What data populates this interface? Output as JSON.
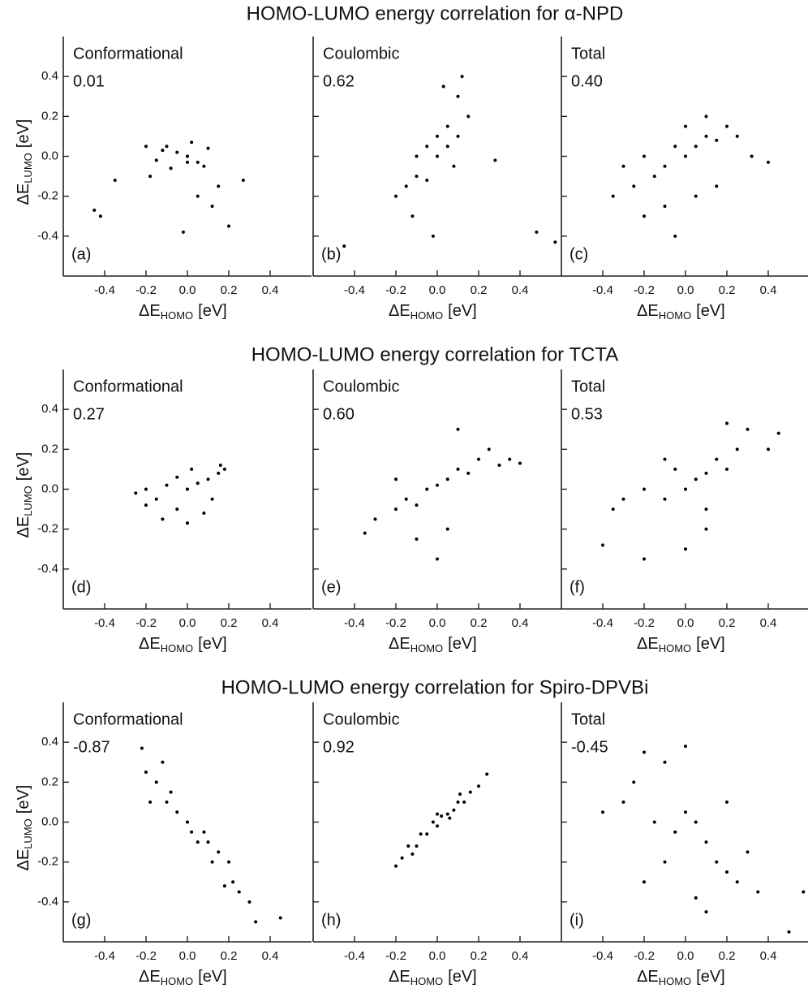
{
  "chart_data": [
    {
      "type": "scatter",
      "title": "HOMO-LUMO energy correlation for α-NPD",
      "annotation": "Conformational",
      "correlation": "0.01",
      "panel_label": "(a)",
      "color": "#000000",
      "xlabel": [
        "ΔE",
        "HOMO",
        "[eV]"
      ],
      "ylabel": [
        "ΔE",
        "LUMO",
        "[eV]"
      ],
      "show_ytick_labels": true,
      "xlim": [
        -0.6,
        0.6
      ],
      "ylim": [
        -0.6,
        0.6
      ],
      "xticks": [
        -0.4,
        -0.2,
        {
          "value": 0,
          "label": "0.0"
        },
        0.2,
        0.4
      ],
      "yticks": [
        -0.4,
        -0.2,
        {
          "value": 0,
          "label": "0.0"
        },
        0.2,
        0.4
      ],
      "x": [
        -0.45,
        -0.42,
        -0.35,
        -0.2,
        -0.15,
        -0.1,
        -0.05,
        0,
        0.05,
        0.1,
        -0.08,
        0.02,
        0.08,
        -0.12,
        0.15,
        0.2,
        0.27,
        0.12,
        -0.02,
        0.05,
        -0.18,
        0.0
      ],
      "y": [
        -0.27,
        -0.3,
        -0.12,
        0.05,
        -0.02,
        0.05,
        0.02,
        0,
        -0.03,
        0.04,
        -0.06,
        0.07,
        -0.05,
        0.03,
        -0.15,
        -0.35,
        -0.12,
        -0.25,
        -0.38,
        -0.2,
        -0.1,
        -0.03
      ]
    },
    {
      "type": "scatter",
      "annotation": "Coulombic",
      "correlation": "0.62",
      "panel_label": "(b)",
      "color": "#000000",
      "xlabel": [
        "ΔE",
        "HOMO",
        "[eV]"
      ],
      "show_ytick_labels": false,
      "xlim": [
        -0.6,
        0.6
      ],
      "ylim": [
        -0.6,
        0.6
      ],
      "xticks": [
        -0.4,
        -0.2,
        {
          "value": 0,
          "label": "0.0"
        },
        0.2,
        0.4
      ],
      "yticks": [
        -0.4,
        -0.2,
        {
          "value": 0,
          "label": "0.0"
        },
        0.2,
        0.4
      ],
      "x": [
        -0.2,
        -0.15,
        -0.1,
        -0.1,
        -0.05,
        -0.05,
        0,
        0,
        0.05,
        0.05,
        0.1,
        0.1,
        0.15,
        -0.12,
        0.08,
        -0.02,
        0.12,
        -0.45,
        0.28,
        0.48,
        0.57,
        0.03
      ],
      "y": [
        -0.2,
        -0.15,
        -0.1,
        0.0,
        -0.12,
        0.05,
        0,
        0.1,
        0.05,
        0.15,
        0.1,
        0.3,
        0.2,
        -0.3,
        -0.05,
        -0.4,
        0.4,
        -0.45,
        -0.02,
        -0.38,
        -0.43,
        0.35
      ]
    },
    {
      "type": "scatter",
      "annotation": "Total",
      "correlation": "0.40",
      "panel_label": "(c)",
      "color": "#000000",
      "xlabel": [
        "ΔE",
        "HOMO",
        "[eV]"
      ],
      "show_ytick_labels": false,
      "xlim": [
        -0.6,
        0.6
      ],
      "ylim": [
        -0.6,
        0.6
      ],
      "xticks": [
        -0.4,
        -0.2,
        {
          "value": 0,
          "label": "0.0"
        },
        0.2,
        0.4
      ],
      "yticks": [
        -0.4,
        -0.2,
        {
          "value": 0,
          "label": "0.0"
        },
        0.2,
        0.4
      ],
      "x": [
        -0.3,
        -0.25,
        -0.2,
        -0.15,
        -0.1,
        -0.05,
        0,
        0.05,
        0.1,
        0.15,
        0.2,
        0.25,
        -0.1,
        0.05,
        0.1,
        -0.35,
        0.32,
        0.4,
        -0.05,
        0.0,
        0.15,
        -0.2
      ],
      "y": [
        -0.05,
        -0.15,
        0.0,
        -0.1,
        -0.05,
        0.05,
        0,
        0.05,
        0.1,
        0.08,
        0.15,
        0.1,
        -0.25,
        -0.2,
        0.2,
        -0.2,
        0.0,
        -0.03,
        -0.4,
        0.15,
        -0.15,
        -0.3
      ]
    },
    {
      "type": "scatter",
      "title": "HOMO-LUMO energy correlation for TCTA",
      "annotation": "Conformational",
      "correlation": "0.27",
      "panel_label": "(d)",
      "color": "#000000",
      "xlabel": [
        "ΔE",
        "HOMO",
        "[eV]"
      ],
      "ylabel": [
        "ΔE",
        "LUMO",
        "[eV]"
      ],
      "show_ytick_labels": true,
      "xlim": [
        -0.6,
        0.6
      ],
      "ylim": [
        -0.6,
        0.6
      ],
      "xticks": [
        -0.4,
        -0.2,
        {
          "value": 0,
          "label": "0.0"
        },
        0.2,
        0.4
      ],
      "yticks": [
        -0.4,
        -0.2,
        {
          "value": 0,
          "label": "0.0"
        },
        0.2,
        0.4
      ],
      "x": [
        -0.25,
        -0.2,
        -0.15,
        -0.1,
        -0.05,
        0,
        0.05,
        0.1,
        0.15,
        0.18,
        -0.12,
        0.0,
        0.08,
        -0.05,
        0.12,
        -0.2,
        0.02,
        0.16
      ],
      "y": [
        -0.02,
        0.0,
        -0.05,
        0.02,
        -0.1,
        0.0,
        0.03,
        0.05,
        0.08,
        0.1,
        -0.15,
        -0.17,
        -0.12,
        0.06,
        -0.05,
        -0.08,
        0.1,
        0.12
      ]
    },
    {
      "type": "scatter",
      "annotation": "Coulombic",
      "correlation": "0.60",
      "panel_label": "(e)",
      "color": "#000000",
      "xlabel": [
        "ΔE",
        "HOMO",
        "[eV]"
      ],
      "show_ytick_labels": false,
      "xlim": [
        -0.6,
        0.6
      ],
      "ylim": [
        -0.6,
        0.6
      ],
      "xticks": [
        -0.4,
        -0.2,
        {
          "value": 0,
          "label": "0.0"
        },
        0.2,
        0.4
      ],
      "yticks": [
        -0.4,
        -0.2,
        {
          "value": 0,
          "label": "0.0"
        },
        0.2,
        0.4
      ],
      "x": [
        -0.35,
        -0.3,
        -0.2,
        -0.15,
        -0.1,
        -0.05,
        0,
        0.05,
        0.1,
        0.15,
        0.2,
        0.25,
        0.3,
        0.35,
        0.4,
        -0.1,
        0.05,
        0.1,
        0.0,
        -0.2
      ],
      "y": [
        -0.22,
        -0.15,
        -0.1,
        -0.05,
        -0.08,
        0.0,
        0.02,
        0.05,
        0.1,
        0.08,
        0.15,
        0.2,
        0.12,
        0.15,
        0.13,
        -0.25,
        -0.2,
        0.3,
        -0.35,
        0.05
      ]
    },
    {
      "type": "scatter",
      "annotation": "Total",
      "correlation": "0.53",
      "panel_label": "(f)",
      "color": "#000000",
      "xlabel": [
        "ΔE",
        "HOMO",
        "[eV]"
      ],
      "show_ytick_labels": false,
      "xlim": [
        -0.6,
        0.6
      ],
      "ylim": [
        -0.6,
        0.6
      ],
      "xticks": [
        -0.4,
        -0.2,
        {
          "value": 0,
          "label": "0.0"
        },
        0.2,
        0.4
      ],
      "yticks": [
        -0.4,
        -0.2,
        {
          "value": 0,
          "label": "0.0"
        },
        0.2,
        0.4
      ],
      "x": [
        -0.4,
        -0.35,
        -0.3,
        -0.2,
        -0.1,
        -0.05,
        0,
        0.05,
        0.1,
        0.15,
        0.2,
        0.25,
        0.3,
        0.4,
        0.45,
        -0.2,
        0.0,
        0.1,
        0.2,
        -0.1,
        0.1
      ],
      "y": [
        -0.28,
        -0.1,
        -0.05,
        0.0,
        -0.05,
        0.1,
        0.0,
        0.05,
        0.08,
        0.15,
        0.1,
        0.2,
        0.3,
        0.2,
        0.28,
        -0.35,
        -0.3,
        -0.2,
        0.33,
        0.15,
        -0.1
      ]
    },
    {
      "type": "scatter",
      "title": "HOMO-LUMO energy correlation for Spiro-DPVBi",
      "annotation": "Conformational",
      "correlation": "-0.87",
      "panel_label": "(g)",
      "color": "#000000",
      "xlabel": [
        "ΔE",
        "HOMO",
        "[eV]"
      ],
      "ylabel": [
        "ΔE",
        "LUMO",
        "[eV]"
      ],
      "show_ytick_labels": true,
      "xlim": [
        -0.6,
        0.6
      ],
      "ylim": [
        -0.6,
        0.6
      ],
      "xticks": [
        -0.4,
        -0.2,
        {
          "value": 0,
          "label": "0.0"
        },
        0.2,
        0.4
      ],
      "yticks": [
        -0.4,
        -0.2,
        {
          "value": 0,
          "label": "0.0"
        },
        0.2,
        0.4
      ],
      "x": [
        -0.22,
        -0.2,
        -0.15,
        -0.12,
        -0.1,
        -0.05,
        0,
        0.02,
        0.05,
        0.1,
        0.12,
        0.15,
        0.2,
        0.22,
        0.25,
        0.3,
        0.33,
        0.45,
        -0.08,
        0.08,
        -0.18,
        0.18
      ],
      "y": [
        0.37,
        0.25,
        0.2,
        0.3,
        0.1,
        0.05,
        0,
        -0.05,
        -0.1,
        -0.1,
        -0.2,
        -0.15,
        -0.2,
        -0.3,
        -0.35,
        -0.4,
        -0.5,
        -0.48,
        0.15,
        -0.05,
        0.1,
        -0.32
      ]
    },
    {
      "type": "scatter",
      "annotation": "Coulombic",
      "correlation": "0.92",
      "panel_label": "(h)",
      "color": "#000000",
      "xlabel": [
        "ΔE",
        "HOMO",
        "[eV]"
      ],
      "show_ytick_labels": false,
      "xlim": [
        -0.6,
        0.6
      ],
      "ylim": [
        -0.6,
        0.6
      ],
      "xticks": [
        -0.4,
        -0.2,
        {
          "value": 0,
          "label": "0.0"
        },
        0.2,
        0.4
      ],
      "yticks": [
        -0.4,
        -0.2,
        {
          "value": 0,
          "label": "0.0"
        },
        0.2,
        0.4
      ],
      "x": [
        -0.2,
        -0.17,
        -0.14,
        -0.1,
        -0.08,
        -0.05,
        -0.02,
        0,
        0.02,
        0.05,
        0.08,
        0.1,
        0.13,
        0.16,
        0.2,
        0.24,
        -0.12,
        0.06,
        0.0,
        0.11
      ],
      "y": [
        -0.22,
        -0.18,
        -0.12,
        -0.12,
        -0.06,
        -0.06,
        0.0,
        -0.02,
        0.03,
        0.04,
        0.06,
        0.1,
        0.1,
        0.15,
        0.18,
        0.24,
        -0.16,
        0.02,
        0.04,
        0.14
      ]
    },
    {
      "type": "scatter",
      "annotation": "Total",
      "correlation": "-0.45",
      "panel_label": "(i)",
      "color": "#000000",
      "xlabel": [
        "ΔE",
        "HOMO",
        "[eV]"
      ],
      "show_ytick_labels": false,
      "xlim": [
        -0.6,
        0.6
      ],
      "ylim": [
        -0.6,
        0.6
      ],
      "xticks": [
        -0.4,
        -0.2,
        {
          "value": 0,
          "label": "0.0"
        },
        0.2,
        0.4
      ],
      "yticks": [
        -0.4,
        -0.2,
        {
          "value": 0,
          "label": "0.0"
        },
        0.2,
        0.4
      ],
      "x": [
        -0.4,
        -0.3,
        -0.25,
        -0.2,
        -0.15,
        -0.1,
        -0.05,
        0,
        0.05,
        0.1,
        0.15,
        0.2,
        0.25,
        0.3,
        0.35,
        0.5,
        0.57,
        -0.2,
        0.0,
        0.1,
        -0.1,
        0.2,
        0.05
      ],
      "y": [
        0.05,
        0.1,
        0.2,
        0.35,
        0.0,
        0.3,
        -0.05,
        0.05,
        0.0,
        -0.1,
        -0.2,
        -0.25,
        -0.3,
        -0.15,
        -0.35,
        -0.55,
        -0.35,
        -0.3,
        0.38,
        -0.45,
        -0.2,
        0.1,
        -0.38
      ]
    }
  ]
}
